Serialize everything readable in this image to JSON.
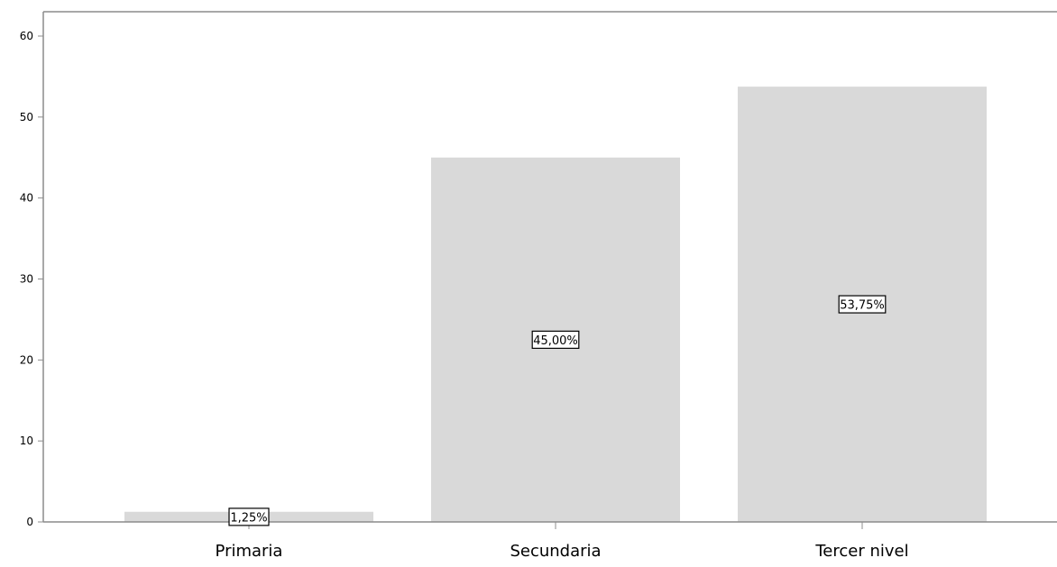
{
  "chart_data": {
    "type": "bar",
    "categories": [
      "Primaria",
      "Secundaria",
      "Tercer nivel"
    ],
    "values": [
      1.25,
      45.0,
      53.75
    ],
    "data_labels": [
      "1,25%",
      "45,00%",
      "53,75%"
    ],
    "title": "",
    "xlabel": "",
    "ylabel": "",
    "ylim": [
      0,
      60
    ],
    "yticks": [
      0,
      10,
      20,
      30,
      40,
      50,
      60
    ],
    "ytick_labels": [
      "0",
      "10",
      "20",
      "30",
      "40",
      "50",
      "60"
    ],
    "grid": false,
    "legend": "none",
    "bar_color": "#d9d9d9",
    "axis_color": "#8c8c8c"
  }
}
